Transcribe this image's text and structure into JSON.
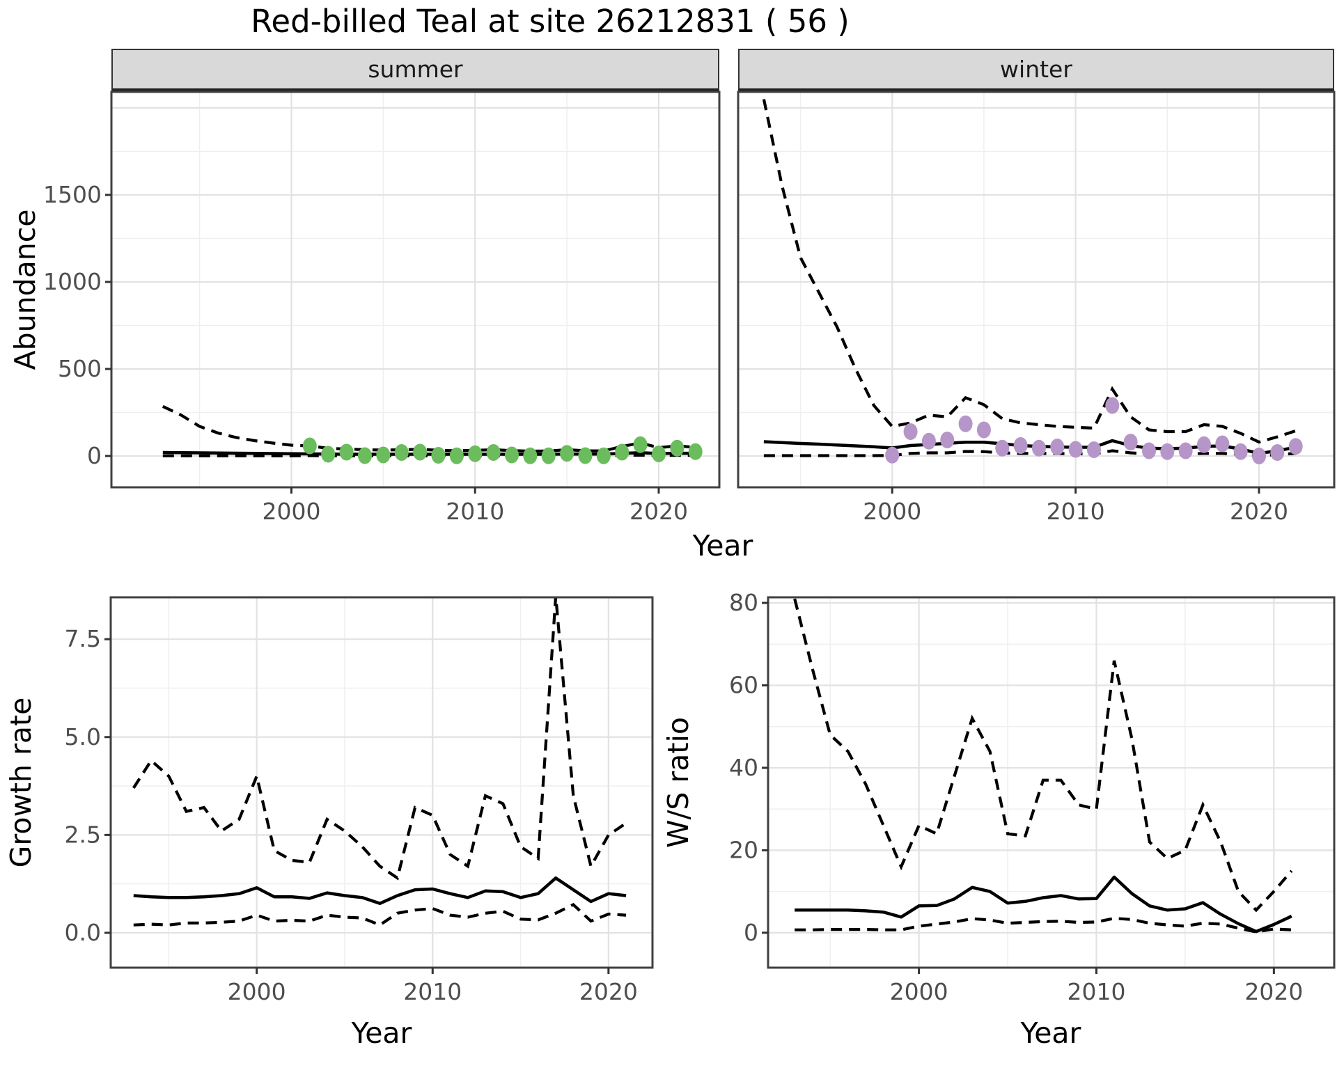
{
  "title": "Red-billed Teal at site 26212831 ( 56 )",
  "facets": {
    "summer": "summer",
    "winter": "winter"
  },
  "axis_titles": {
    "abundance": "Abundance",
    "year": "Year",
    "growth": "Growth rate",
    "ws": "W/S ratio"
  },
  "colors": {
    "summer_point": "#6abc5c",
    "winter_point": "#b696c8",
    "line": "#000000",
    "grid_major": "#e2e2e2",
    "grid_minor": "#efefef",
    "strip_bg": "#d9d9d9",
    "axis_text": "#4d4d4d",
    "panel_border": "#404040"
  },
  "chart_data": [
    {
      "id": "abundance_summer",
      "type": "line",
      "facet_label": "summer",
      "ylabel": "Abundance",
      "xlabel": "Year",
      "xlim": [
        1990.2,
        2023.3
      ],
      "ylim": [
        -180,
        2092
      ],
      "xticks": [
        2000,
        2010,
        2020
      ],
      "xtick_labels": [
        "2000",
        "2010",
        "2020"
      ],
      "yticks": [
        0,
        500,
        1000,
        1500
      ],
      "ytick_labels": [
        "0",
        "500",
        "1000",
        "1500"
      ],
      "show_ytick_labels": true,
      "grid": true,
      "legend": "none",
      "series": {
        "years": [
          1993,
          1994,
          1995,
          1996,
          1997,
          1998,
          1999,
          2000,
          2001,
          2002,
          2003,
          2004,
          2005,
          2006,
          2007,
          2008,
          2009,
          2010,
          2011,
          2012,
          2013,
          2014,
          2015,
          2016,
          2017,
          2018,
          2019,
          2020,
          2021,
          2022
        ],
        "fit": [
          20,
          19,
          18,
          17,
          16,
          15,
          14,
          13,
          12,
          11,
          10,
          10,
          10,
          10,
          10,
          10,
          10,
          10,
          10,
          10,
          10,
          10,
          11,
          11,
          11,
          15,
          19,
          14,
          16,
          15
        ],
        "upper": [
          285,
          235,
          170,
          132,
          106,
          88,
          74,
          62,
          58,
          44,
          40,
          36,
          34,
          36,
          38,
          33,
          30,
          33,
          36,
          31,
          28,
          29,
          36,
          30,
          29,
          55,
          75,
          48,
          58,
          50
        ],
        "lower": [
          1,
          1,
          1,
          1,
          1,
          1,
          1,
          1,
          2,
          1,
          1,
          1,
          1,
          1,
          1,
          1,
          1,
          1,
          1,
          1,
          1,
          1,
          2,
          1,
          1,
          3,
          5,
          3,
          4,
          3
        ]
      },
      "points": {
        "name": "observed-summer-count",
        "color": "#6abc5c",
        "years": [
          2001,
          2002,
          2003,
          2004,
          2005,
          2006,
          2007,
          2008,
          2009,
          2010,
          2011,
          2012,
          2013,
          2014,
          2015,
          2016,
          2017,
          2018,
          2019,
          2020,
          2021,
          2022
        ],
        "values": [
          58,
          10,
          22,
          2,
          6,
          20,
          22,
          4,
          1,
          13,
          20,
          6,
          1,
          1,
          15,
          2,
          1,
          22,
          65,
          12,
          45,
          25
        ]
      }
    },
    {
      "id": "abundance_winter",
      "type": "line",
      "facet_label": "winter",
      "ylabel": "Abundance",
      "xlabel": "Year",
      "xlim": [
        1991.6,
        2024.1
      ],
      "ylim": [
        -180,
        2092
      ],
      "xticks": [
        2000,
        2010,
        2020
      ],
      "xtick_labels": [
        "2000",
        "2010",
        "2020"
      ],
      "yticks": [
        0,
        500,
        1000,
        1500
      ],
      "ytick_labels": [
        "0",
        "500",
        "1000",
        "1500"
      ],
      "show_ytick_labels": false,
      "grid": true,
      "legend": "none",
      "series": {
        "years": [
          1993,
          1994,
          1995,
          1996,
          1997,
          1998,
          1999,
          2000,
          2001,
          2002,
          2003,
          2004,
          2005,
          2006,
          2007,
          2008,
          2009,
          2010,
          2011,
          2012,
          2013,
          2014,
          2015,
          2016,
          2017,
          2018,
          2019,
          2020,
          2021,
          2022
        ],
        "fit": [
          82,
          77,
          72,
          68,
          63,
          58,
          53,
          46,
          60,
          66,
          73,
          79,
          79,
          70,
          60,
          55,
          52,
          50,
          50,
          88,
          60,
          45,
          42,
          45,
          55,
          58,
          40,
          15,
          30,
          50
        ],
        "upper": [
          2050,
          1550,
          1140,
          940,
          740,
          500,
          290,
          170,
          190,
          235,
          225,
          335,
          295,
          215,
          190,
          180,
          170,
          165,
          160,
          385,
          225,
          150,
          140,
          140,
          180,
          170,
          130,
          80,
          110,
          145
        ],
        "lower": [
          2,
          2,
          2,
          2,
          2,
          2,
          2,
          3,
          15,
          18,
          18,
          26,
          25,
          18,
          15,
          15,
          14,
          13,
          12,
          30,
          18,
          12,
          10,
          12,
          15,
          15,
          10,
          2,
          8,
          15
        ]
      },
      "points": {
        "name": "observed-winter-count",
        "color": "#b696c8",
        "years": [
          2000,
          2001,
          2002,
          2003,
          2004,
          2005,
          2006,
          2007,
          2008,
          2009,
          2010,
          2011,
          2012,
          2013,
          2014,
          2015,
          2016,
          2017,
          2018,
          2019,
          2020,
          2021,
          2022
        ],
        "values": [
          5,
          140,
          85,
          92,
          185,
          150,
          45,
          60,
          45,
          52,
          38,
          36,
          290,
          80,
          30,
          25,
          30,
          65,
          70,
          25,
          0,
          20,
          55
        ]
      }
    },
    {
      "id": "growth_rate",
      "type": "line",
      "facet_label": "",
      "ylabel": "Growth rate",
      "xlabel": "Year",
      "xlim": [
        1991.7,
        2022.5
      ],
      "ylim": [
        -0.89,
        8.57
      ],
      "xticks": [
        2000,
        2010,
        2020
      ],
      "xtick_labels": [
        "2000",
        "2010",
        "2020"
      ],
      "yticks": [
        0,
        2.5,
        5,
        7.5
      ],
      "ytick_labels": [
        "0.0",
        "2.5",
        "5.0",
        "7.5"
      ],
      "show_ytick_labels": true,
      "grid": true,
      "legend": "none",
      "series": {
        "years": [
          1993,
          1994,
          1995,
          1996,
          1997,
          1998,
          1999,
          2000,
          2001,
          2002,
          2003,
          2004,
          2005,
          2006,
          2007,
          2008,
          2009,
          2010,
          2011,
          2012,
          2013,
          2014,
          2015,
          2016,
          2017,
          2018,
          2019,
          2020,
          2021
        ],
        "fit": [
          0.95,
          0.92,
          0.9,
          0.9,
          0.92,
          0.95,
          1.0,
          1.15,
          0.92,
          0.92,
          0.88,
          1.02,
          0.95,
          0.9,
          0.75,
          0.95,
          1.1,
          1.12,
          1.0,
          0.9,
          1.07,
          1.05,
          0.9,
          1.0,
          1.4,
          1.1,
          0.8,
          1.0,
          0.95
        ],
        "upper": [
          3.7,
          4.4,
          4.0,
          3.1,
          3.2,
          2.6,
          2.9,
          4.0,
          2.1,
          1.85,
          1.8,
          2.9,
          2.6,
          2.2,
          1.7,
          1.4,
          3.2,
          3.0,
          2.0,
          1.7,
          3.5,
          3.3,
          2.2,
          1.9,
          8.6,
          3.5,
          1.7,
          2.5,
          2.8
        ],
        "lower": [
          0.2,
          0.22,
          0.2,
          0.25,
          0.25,
          0.27,
          0.3,
          0.45,
          0.3,
          0.32,
          0.3,
          0.45,
          0.4,
          0.38,
          0.2,
          0.5,
          0.58,
          0.62,
          0.45,
          0.4,
          0.5,
          0.55,
          0.35,
          0.33,
          0.5,
          0.72,
          0.3,
          0.48,
          0.45
        ]
      },
      "points": null
    },
    {
      "id": "ws_ratio",
      "type": "line",
      "facet_label": "",
      "ylabel": "W/S ratio",
      "xlabel": "Year",
      "xlim": [
        1991.5,
        2023.4
      ],
      "ylim": [
        -8.47,
        81.36
      ],
      "xticks": [
        2000,
        2010,
        2020
      ],
      "xtick_labels": [
        "2000",
        "2010",
        "2020"
      ],
      "yticks": [
        0,
        20,
        40,
        60,
        80
      ],
      "ytick_labels": [
        "0",
        "20",
        "40",
        "60",
        "80"
      ],
      "show_ytick_labels": true,
      "grid": true,
      "legend": "none",
      "series": {
        "years": [
          1993,
          1994,
          1995,
          1996,
          1997,
          1998,
          1999,
          2000,
          2001,
          2002,
          2003,
          2004,
          2005,
          2006,
          2007,
          2008,
          2009,
          2010,
          2011,
          2012,
          2013,
          2014,
          2015,
          2016,
          2017,
          2018,
          2019,
          2020,
          2021
        ],
        "fit": [
          5.5,
          5.5,
          5.5,
          5.5,
          5.3,
          5.0,
          3.8,
          6.5,
          6.6,
          8.2,
          11,
          10,
          7.2,
          7.6,
          8.5,
          9,
          8.2,
          8.3,
          13.5,
          9.5,
          6.5,
          5.5,
          5.8,
          7.3,
          4.5,
          2.2,
          0.3,
          2,
          4
        ],
        "upper": [
          81,
          64,
          48,
          44,
          36,
          26,
          16,
          26,
          24,
          38,
          52,
          44,
          24,
          23.5,
          37,
          37,
          31,
          30,
          66,
          47,
          22,
          18,
          20,
          31,
          22,
          10,
          5.5,
          10,
          15
        ],
        "lower": [
          0.7,
          0.7,
          0.8,
          0.8,
          0.8,
          0.7,
          0.7,
          1.6,
          2.1,
          2.6,
          3.4,
          3.1,
          2.3,
          2.5,
          2.7,
          2.8,
          2.5,
          2.6,
          3.5,
          3.2,
          2.3,
          1.9,
          1.6,
          2.3,
          2.1,
          1.1,
          0.2,
          0.9,
          0.7
        ]
      },
      "points": null
    }
  ]
}
